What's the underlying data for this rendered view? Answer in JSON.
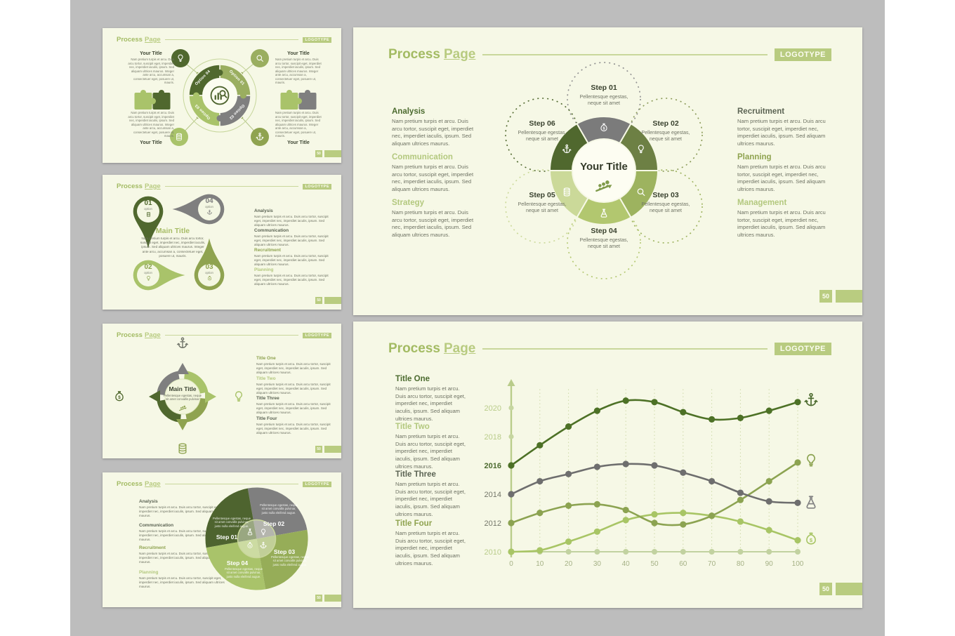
{
  "header": {
    "word1": "Process",
    "word2": "Page",
    "logotype": "LOGOTYPE"
  },
  "page_number": "50",
  "texts": {
    "lorem_short": "Nam pretium turpis et arcu. Duis arcu tortor, suscipit eget, imperdiet nec, imperdiet iaculis, ipsum. Sed aliquam ultrices maurus.",
    "lorem_long": "Nam pretium turpis et arcu. Duis arcu tortor, suscipit eget, imperdiet nec, imperdiet iaculis, ipsum. Sed aliquam ultrices maurus. Integer ante arcu, accumsan a, consectetuer eget, posuere ut, mauris.",
    "pellentesque_short": "Pellentesque egestas, neque sit amet",
    "pellentesque_mid": "Pellentesque egestas, neque sit amet convallis pulvinar",
    "pellentesque_long": "Pellentesque egestas, neque sit amet convallis pulvinar, justo nulla eleifend augue."
  },
  "slide_puzzle": {
    "your_title": "Your Title",
    "options": [
      "Option 01",
      "Option 02",
      "Option 03",
      "Option 04"
    ]
  },
  "slide_pins": {
    "main_title": "Main Title",
    "option_label": "option",
    "pins": [
      {
        "num": "01"
      },
      {
        "num": "02"
      },
      {
        "num": "03"
      },
      {
        "num": "04"
      }
    ],
    "sections": [
      "Analysis",
      "Communication",
      "Recruitment",
      "Planning"
    ]
  },
  "slide_cycle": {
    "main_title": "Main Title",
    "sections": [
      "Title One",
      "Title Two",
      "Title Three",
      "Title Four"
    ]
  },
  "slide_swirl": {
    "steps": [
      "Step 01",
      "Step 02",
      "Step 03",
      "Step 04"
    ],
    "sections": [
      "Analysis",
      "Communication",
      "Recruitment",
      "Planning"
    ]
  },
  "slide_flower": {
    "center_title": "Your Title",
    "steps": [
      "Step 01",
      "Step 02",
      "Step 03",
      "Step 04",
      "Step 05",
      "Step 06"
    ],
    "left_sections": [
      "Analysis",
      "Communication",
      "Strategy"
    ],
    "right_sections": [
      "Recruitment",
      "Planning",
      "Management"
    ]
  },
  "slide_chart": {
    "sections": [
      "Title One",
      "Title Two",
      "Title Three",
      "Title Four"
    ]
  },
  "chart_data": {
    "type": "line",
    "x": [
      0,
      10,
      20,
      30,
      40,
      50,
      60,
      70,
      80,
      90,
      100
    ],
    "xlabel": "",
    "ylabel": "",
    "xlim": [
      0,
      100
    ],
    "ylim": [
      2010,
      2021
    ],
    "yticks": [
      2010,
      2012,
      2014,
      2016,
      2018,
      2020
    ],
    "grid": "vertical-dotted",
    "legend_position": "right-icons",
    "ytick_colors": {
      "2010": "#b9cc8a",
      "2012": "#74776a",
      "2014": "#74776a",
      "2016": "#4c6b2f",
      "2018": "#b9cc8a",
      "2020": "#b9cc8a"
    },
    "series": [
      {
        "name": "anchor",
        "color": "#4d7126",
        "values": [
          2016.0,
          2017.4,
          2018.7,
          2019.8,
          2020.5,
          2020.4,
          2019.7,
          2019.2,
          2019.3,
          2019.8,
          2020.4
        ]
      },
      {
        "name": "flask",
        "color": "#6e6e6e",
        "values": [
          2014.0,
          2014.9,
          2015.4,
          2015.9,
          2016.1,
          2016.0,
          2015.5,
          2014.9,
          2014.1,
          2013.5,
          2013.4
        ]
      },
      {
        "name": "bulb",
        "color": "#8ca351",
        "values": [
          2012.0,
          2012.7,
          2013.2,
          2013.3,
          2012.9,
          2012.0,
          2011.9,
          2012.5,
          2013.6,
          2014.9,
          2016.2
        ]
      },
      {
        "name": "moneybag",
        "color": "#a8c565",
        "values": [
          2010.0,
          2010.1,
          2010.7,
          2011.4,
          2012.2,
          2012.6,
          2012.7,
          2012.5,
          2012.1,
          2011.5,
          2010.8
        ]
      },
      {
        "name": "baseline",
        "color": "#c2d2a0",
        "values": [
          2010,
          2010,
          2010,
          2010,
          2010,
          2010,
          2010,
          2010,
          2010,
          2010,
          2010
        ]
      }
    ]
  }
}
